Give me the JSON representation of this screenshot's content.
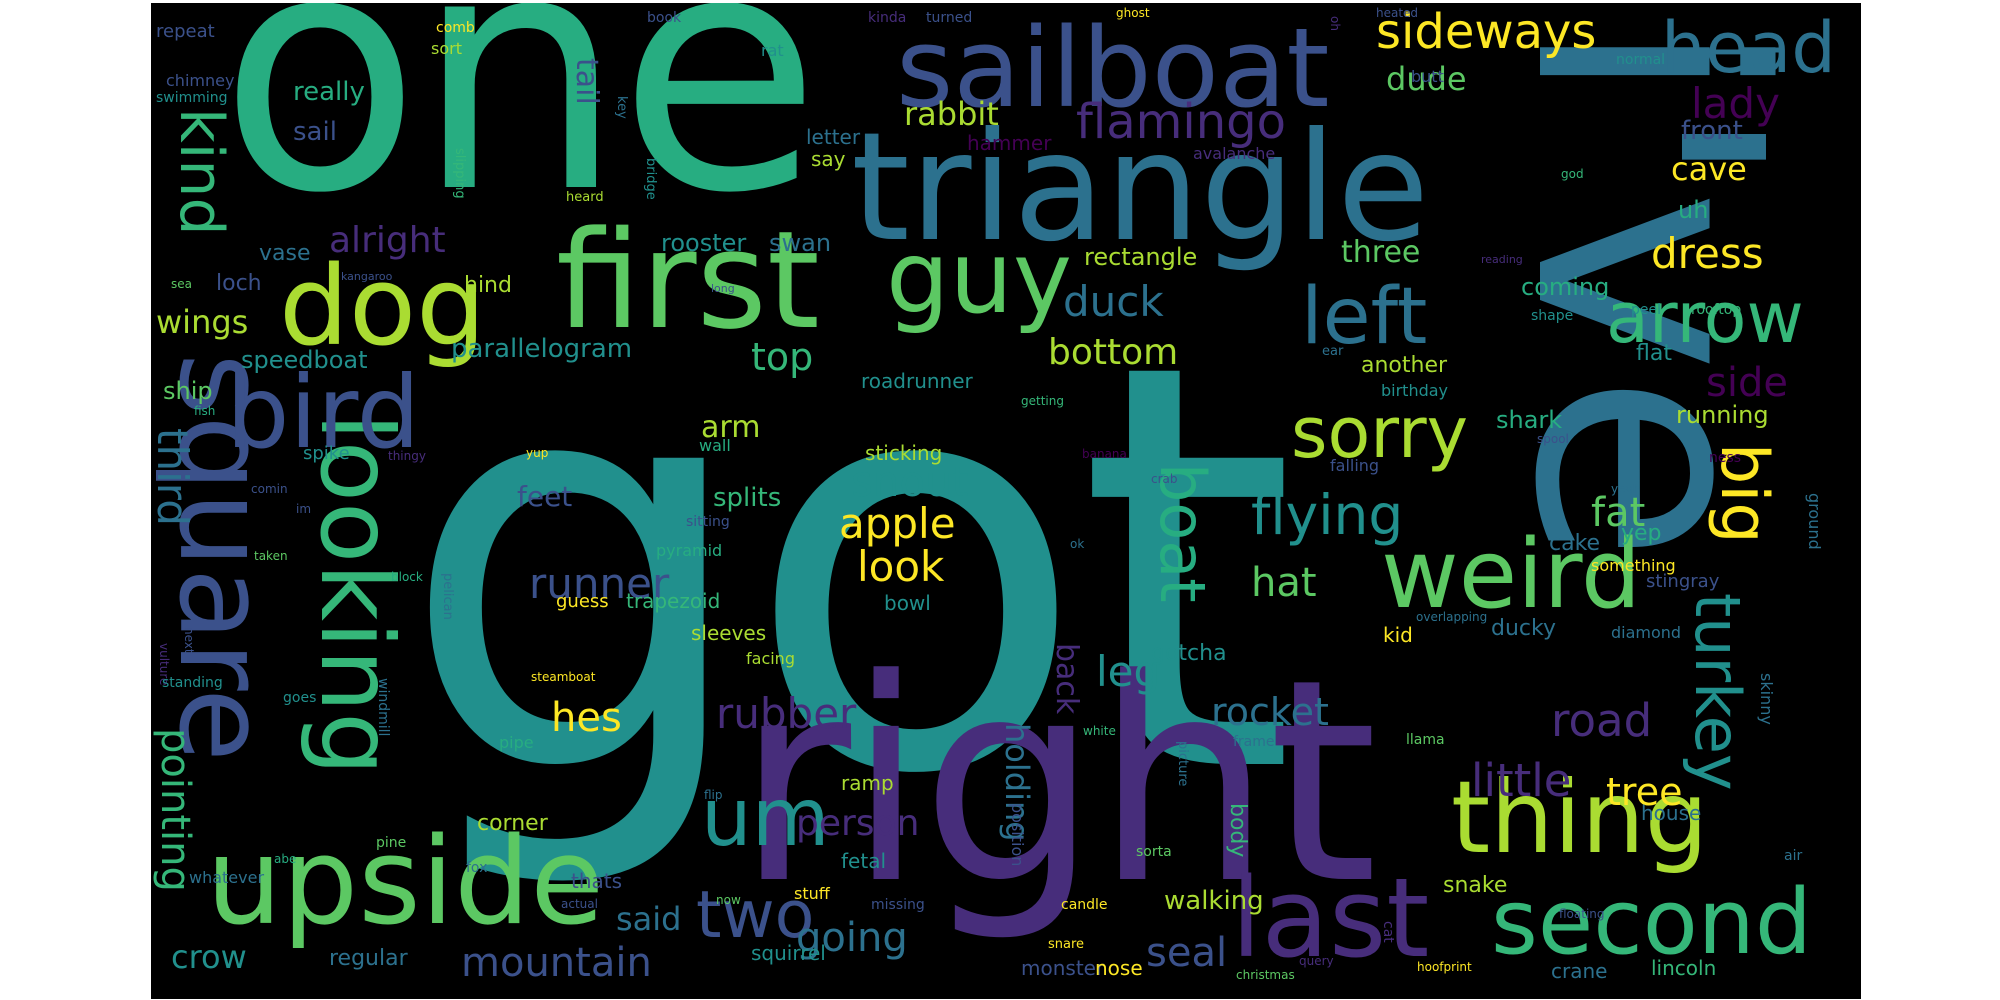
{
  "palette": [
    "#440154",
    "#472d7b",
    "#3b518b",
    "#2c718e",
    "#21908d",
    "#27ad81",
    "#5cc863",
    "#aadc32",
    "#fde725",
    "#35b779"
  ],
  "words": [
    {
      "text": "got",
      "color": "#21908d"
    },
    {
      "text": "one",
      "color": "#27ad81"
    },
    {
      "text": "i've",
      "color": "#2c718e"
    },
    {
      "text": "right",
      "color": "#472d7b"
    },
    {
      "text": "triangle",
      "color": "#2c718e"
    },
    {
      "text": "sailboat",
      "color": "#3b518b"
    },
    {
      "text": "first",
      "color": "#5cc863"
    },
    {
      "text": "dog",
      "color": "#aadc32"
    },
    {
      "text": "guy",
      "color": "#5cc863"
    },
    {
      "text": "upside",
      "color": "#5cc863"
    },
    {
      "text": "square",
      "color": "#3b518b"
    },
    {
      "text": "looking",
      "color": "#35b779"
    },
    {
      "text": "bird",
      "color": "#3b518b"
    },
    {
      "text": "thing",
      "color": "#aadc32"
    },
    {
      "text": "last",
      "color": "#472d7b"
    },
    {
      "text": "second",
      "color": "#35b779"
    },
    {
      "text": "weird",
      "color": "#5cc863"
    },
    {
      "text": "um",
      "color": "#21908d"
    },
    {
      "text": "head",
      "color": "#2c718e"
    },
    {
      "text": "arrow",
      "color": "#35b779"
    },
    {
      "text": "left",
      "color": "#2c718e"
    },
    {
      "text": "sorry",
      "color": "#aadc32"
    },
    {
      "text": "two",
      "color": "#3b518b"
    },
    {
      "text": "big",
      "color": "#fde725"
    },
    {
      "text": "turkey",
      "color": "#21908d"
    },
    {
      "text": "boat",
      "color": "#27ad81"
    },
    {
      "text": "kind",
      "color": "#35b779"
    },
    {
      "text": "flying",
      "color": "#21908d"
    },
    {
      "text": "sideways",
      "color": "#fde725"
    },
    {
      "text": "flamingo",
      "color": "#472d7b"
    },
    {
      "text": "lady",
      "color": "#440154"
    },
    {
      "text": "dress",
      "color": "#fde725"
    },
    {
      "text": "runner",
      "color": "#3b518b"
    },
    {
      "text": "third",
      "color": "#2c718e"
    },
    {
      "text": "apple",
      "color": "#fde725"
    },
    {
      "text": "look",
      "color": "#fde725"
    },
    {
      "text": "snout",
      "color": "#21908d"
    },
    {
      "text": "rubber",
      "color": "#472d7b"
    },
    {
      "text": "person",
      "color": "#472d7b"
    },
    {
      "text": "little",
      "color": "#472d7b"
    },
    {
      "text": "road",
      "color": "#472d7b"
    },
    {
      "text": "mountain",
      "color": "#3b518b"
    },
    {
      "text": "going",
      "color": "#2c718e"
    },
    {
      "text": "seal",
      "color": "#3b518b"
    },
    {
      "text": "pointing",
      "color": "#35b779"
    },
    {
      "text": "hes",
      "color": "#fde725"
    },
    {
      "text": "rocket",
      "color": "#2c718e"
    },
    {
      "text": "leg",
      "color": "#21908d"
    },
    {
      "text": "hat",
      "color": "#5cc863"
    },
    {
      "text": "fat",
      "color": "#5cc863"
    },
    {
      "text": "tree",
      "color": "#fde725"
    },
    {
      "text": "side",
      "color": "#440154"
    },
    {
      "text": "alright",
      "color": "#472d7b"
    },
    {
      "text": "duck",
      "color": "#2c718e"
    },
    {
      "text": "bottom",
      "color": "#aadc32"
    },
    {
      "text": "top",
      "color": "#35b779"
    },
    {
      "text": "wings",
      "color": "#aadc32"
    },
    {
      "text": "rabbit",
      "color": "#aadc32"
    },
    {
      "text": "dude",
      "color": "#5cc863"
    },
    {
      "text": "cave",
      "color": "#fde725"
    },
    {
      "text": "tail",
      "color": "#3b518b"
    },
    {
      "text": "three",
      "color": "#5cc863"
    },
    {
      "text": "crow",
      "color": "#21908d"
    },
    {
      "text": "said",
      "color": "#2c718e"
    },
    {
      "text": "holding",
      "color": "#2c718e"
    },
    {
      "text": "back",
      "color": "#472d7b"
    },
    {
      "text": "arm",
      "color": "#aadc32"
    },
    {
      "text": "feet",
      "color": "#3b518b"
    },
    {
      "text": "splits",
      "color": "#35b779"
    },
    {
      "text": "parallelogram",
      "color": "#21908d"
    },
    {
      "text": "rectangle",
      "color": "#aadc32"
    },
    {
      "text": "really",
      "color": "#27ad81"
    },
    {
      "text": "sail",
      "color": "#3b518b"
    },
    {
      "text": "rooster",
      "color": "#21908d"
    },
    {
      "text": "swan",
      "color": "#2c718e"
    },
    {
      "text": "ship",
      "color": "#5cc863"
    },
    {
      "text": "speedboat",
      "color": "#21908d"
    },
    {
      "text": "loch",
      "color": "#3b518b"
    },
    {
      "text": "vase",
      "color": "#2c718e"
    },
    {
      "text": "hind",
      "color": "#aadc32"
    },
    {
      "text": "coming",
      "color": "#27ad81"
    },
    {
      "text": "another",
      "color": "#aadc32"
    },
    {
      "text": "shark",
      "color": "#27ad81"
    },
    {
      "text": "running",
      "color": "#aadc32"
    },
    {
      "text": "front",
      "color": "#3b518b"
    },
    {
      "text": "uh",
      "color": "#27ad81"
    },
    {
      "text": "cake",
      "color": "#2c718e"
    },
    {
      "text": "yep",
      "color": "#27ad81"
    },
    {
      "text": "gotcha",
      "color": "#21908d"
    },
    {
      "text": "ducky",
      "color": "#2c718e"
    },
    {
      "text": "kid",
      "color": "#fde725"
    },
    {
      "text": "snake",
      "color": "#aadc32"
    },
    {
      "text": "walking",
      "color": "#aadc32"
    },
    {
      "text": "body",
      "color": "#35b779"
    },
    {
      "text": "corner",
      "color": "#aadc32"
    },
    {
      "text": "thats",
      "color": "#3b518b"
    },
    {
      "text": "fetal",
      "color": "#21908d"
    },
    {
      "text": "ramp",
      "color": "#aadc32"
    },
    {
      "text": "squirrel",
      "color": "#21908d"
    },
    {
      "text": "regular",
      "color": "#2c718e"
    },
    {
      "text": "monster",
      "color": "#3b518b"
    },
    {
      "text": "nose",
      "color": "#fde725"
    },
    {
      "text": "crane",
      "color": "#2c718e"
    },
    {
      "text": "lincoln",
      "color": "#35b779"
    },
    {
      "text": "house",
      "color": "#2c718e"
    },
    {
      "text": "flat",
      "color": "#21908d"
    },
    {
      "text": "stingray",
      "color": "#3b518b"
    },
    {
      "text": "something",
      "color": "#fde725"
    },
    {
      "text": "diamond",
      "color": "#2c718e"
    },
    {
      "text": "skinny",
      "color": "#2c718e"
    },
    {
      "text": "ground",
      "color": "#2c718e"
    },
    {
      "text": "guess",
      "color": "#fde725"
    },
    {
      "text": "trapezoid",
      "color": "#35b779"
    },
    {
      "text": "bowl",
      "color": "#21908d"
    },
    {
      "text": "sleeves",
      "color": "#aadc32"
    },
    {
      "text": "pyramid",
      "color": "#27ad81"
    },
    {
      "text": "sticking",
      "color": "#aadc32"
    },
    {
      "text": "roadrunner",
      "color": "#21908d"
    },
    {
      "text": "letter",
      "color": "#2c718e"
    },
    {
      "text": "say",
      "color": "#aadc32"
    },
    {
      "text": "hammer",
      "color": "#440154"
    },
    {
      "text": "avalanche",
      "color": "#472d7b"
    },
    {
      "text": "butt",
      "color": "#3b518b"
    },
    {
      "text": "normal",
      "color": "#21908d"
    },
    {
      "text": "repeat",
      "color": "#3b518b"
    },
    {
      "text": "chimney",
      "color": "#3b518b"
    },
    {
      "text": "swimming",
      "color": "#21908d"
    },
    {
      "text": "comb",
      "color": "#fde725"
    },
    {
      "text": "sort",
      "color": "#aadc32"
    },
    {
      "text": "book",
      "color": "#3b518b"
    },
    {
      "text": "rat",
      "color": "#21908d"
    },
    {
      "text": "kinda",
      "color": "#472d7b"
    },
    {
      "text": "turned",
      "color": "#3b518b"
    },
    {
      "text": "oh",
      "color": "#472d7b"
    },
    {
      "text": "heard",
      "color": "#aadc32"
    },
    {
      "text": "key",
      "color": "#2c718e"
    },
    {
      "text": "slipping",
      "color": "#35b779"
    },
    {
      "text": "bridge",
      "color": "#21908d"
    },
    {
      "text": "god",
      "color": "#35b779"
    },
    {
      "text": "kangaroo",
      "color": "#3b518b"
    },
    {
      "text": "sea",
      "color": "#5cc863"
    },
    {
      "text": "long",
      "color": "#3b518b"
    },
    {
      "text": "reading",
      "color": "#472d7b"
    },
    {
      "text": "shape",
      "color": "#21908d"
    },
    {
      "text": "peel",
      "color": "#21908d"
    },
    {
      "text": "rooftop",
      "color": "#35b779"
    },
    {
      "text": "ear",
      "color": "#2c718e"
    },
    {
      "text": "birthday",
      "color": "#21908d"
    },
    {
      "text": "getting",
      "color": "#35b779"
    },
    {
      "text": "fish",
      "color": "#27ad81"
    },
    {
      "text": "spike",
      "color": "#21908d"
    },
    {
      "text": "thingy",
      "color": "#472d7b"
    },
    {
      "text": "yup",
      "color": "#fde725"
    },
    {
      "text": "wall",
      "color": "#27ad81"
    },
    {
      "text": "banana",
      "color": "#440154"
    },
    {
      "text": "spool",
      "color": "#3b518b"
    },
    {
      "text": "falling",
      "color": "#3b518b"
    },
    {
      "text": "ness",
      "color": "#440154"
    },
    {
      "text": "comin",
      "color": "#3b518b"
    },
    {
      "text": "im",
      "color": "#3b518b"
    },
    {
      "text": "yeah",
      "color": "#2c718e"
    },
    {
      "text": "crab",
      "color": "#3b518b"
    },
    {
      "text": "sitting",
      "color": "#3b518b"
    },
    {
      "text": "taken",
      "color": "#5cc863"
    },
    {
      "text": "pelican",
      "color": "#2c718e"
    },
    {
      "text": "block",
      "color": "#27ad81"
    },
    {
      "text": "ok",
      "color": "#2c718e"
    },
    {
      "text": "overlapping",
      "color": "#2c718e"
    },
    {
      "text": "vulture",
      "color": "#472d7b"
    },
    {
      "text": "next",
      "color": "#3b518b"
    },
    {
      "text": "standing",
      "color": "#21908d"
    },
    {
      "text": "windmill",
      "color": "#2c718e"
    },
    {
      "text": "facing",
      "color": "#aadc32"
    },
    {
      "text": "steamboat",
      "color": "#fde725"
    },
    {
      "text": "goes",
      "color": "#21908d"
    },
    {
      "text": "pipe",
      "color": "#27ad81"
    },
    {
      "text": "white",
      "color": "#35b779"
    },
    {
      "text": "picture",
      "color": "#2c718e"
    },
    {
      "text": "frame",
      "color": "#2c718e"
    },
    {
      "text": "llama",
      "color": "#5cc863"
    },
    {
      "text": "pine",
      "color": "#5cc863"
    },
    {
      "text": "flip",
      "color": "#2c718e"
    },
    {
      "text": "abe",
      "color": "#27ad81"
    },
    {
      "text": "fox",
      "color": "#2c718e"
    },
    {
      "text": "whatever",
      "color": "#2c718e"
    },
    {
      "text": "sorta",
      "color": "#5cc863"
    },
    {
      "text": "air",
      "color": "#2c718e"
    },
    {
      "text": "actual",
      "color": "#3b518b"
    },
    {
      "text": "now",
      "color": "#5cc863"
    },
    {
      "text": "stuff",
      "color": "#fde725"
    },
    {
      "text": "missing",
      "color": "#3b518b"
    },
    {
      "text": "candle",
      "color": "#fde725"
    },
    {
      "text": "floating",
      "color": "#3b518b"
    },
    {
      "text": "cat",
      "color": "#472d7b"
    },
    {
      "text": "position",
      "color": "#3b518b"
    },
    {
      "text": "snare",
      "color": "#fde725"
    },
    {
      "text": "christmas",
      "color": "#5cc863"
    },
    {
      "text": "query",
      "color": "#472d7b"
    },
    {
      "text": "hoofprint",
      "color": "#fde725"
    },
    {
      "text": "heated",
      "color": "#3b518b"
    },
    {
      "text": "ghost",
      "color": "#fde725"
    }
  ]
}
